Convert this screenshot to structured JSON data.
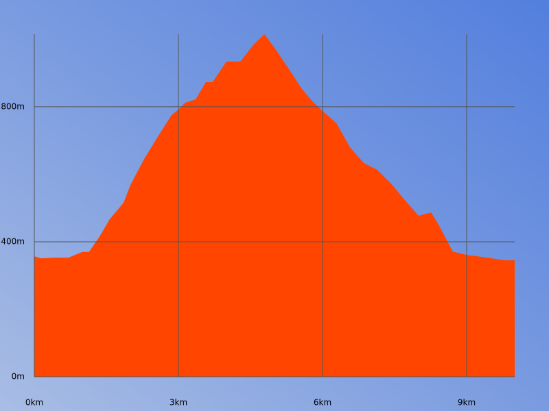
{
  "chart_data": {
    "type": "area",
    "color": "#ff4500",
    "grid": true,
    "x": [
      0,
      0.14,
      0.43,
      0.71,
      1.0,
      1.14,
      1.36,
      1.57,
      1.86,
      2.0,
      2.29,
      2.57,
      2.86,
      3.0,
      3.14,
      3.36,
      3.57,
      3.71,
      4.0,
      4.29,
      4.57,
      4.79,
      5.0,
      5.29,
      5.57,
      5.79,
      6.0,
      6.29,
      6.57,
      6.86,
      7.14,
      7.43,
      7.71,
      8.0,
      8.26,
      8.43,
      8.71,
      9.0,
      9.43,
      9.79,
      10.0
    ],
    "values": [
      357,
      351,
      353,
      353,
      370,
      370,
      416,
      467,
      516,
      568,
      646,
      711,
      776,
      792,
      812,
      822,
      873,
      873,
      934,
      934,
      985,
      1015,
      975,
      914,
      853,
      816,
      788,
      751,
      680,
      633,
      613,
      572,
      524,
      477,
      487,
      447,
      371,
      361,
      353,
      345,
      345
    ],
    "xlim": [
      0,
      10
    ],
    "xticks": [
      {
        "value": 0,
        "label": "0km"
      },
      {
        "value": 3,
        "label": "3km"
      },
      {
        "value": 6,
        "label": "6km"
      },
      {
        "value": 9,
        "label": "9km"
      }
    ],
    "ylim": [
      0,
      1015
    ],
    "yticks": [
      {
        "value": 0,
        "label": "0m"
      },
      {
        "value": 400,
        "label": "400m"
      },
      {
        "value": 800,
        "label": "800m"
      }
    ]
  }
}
